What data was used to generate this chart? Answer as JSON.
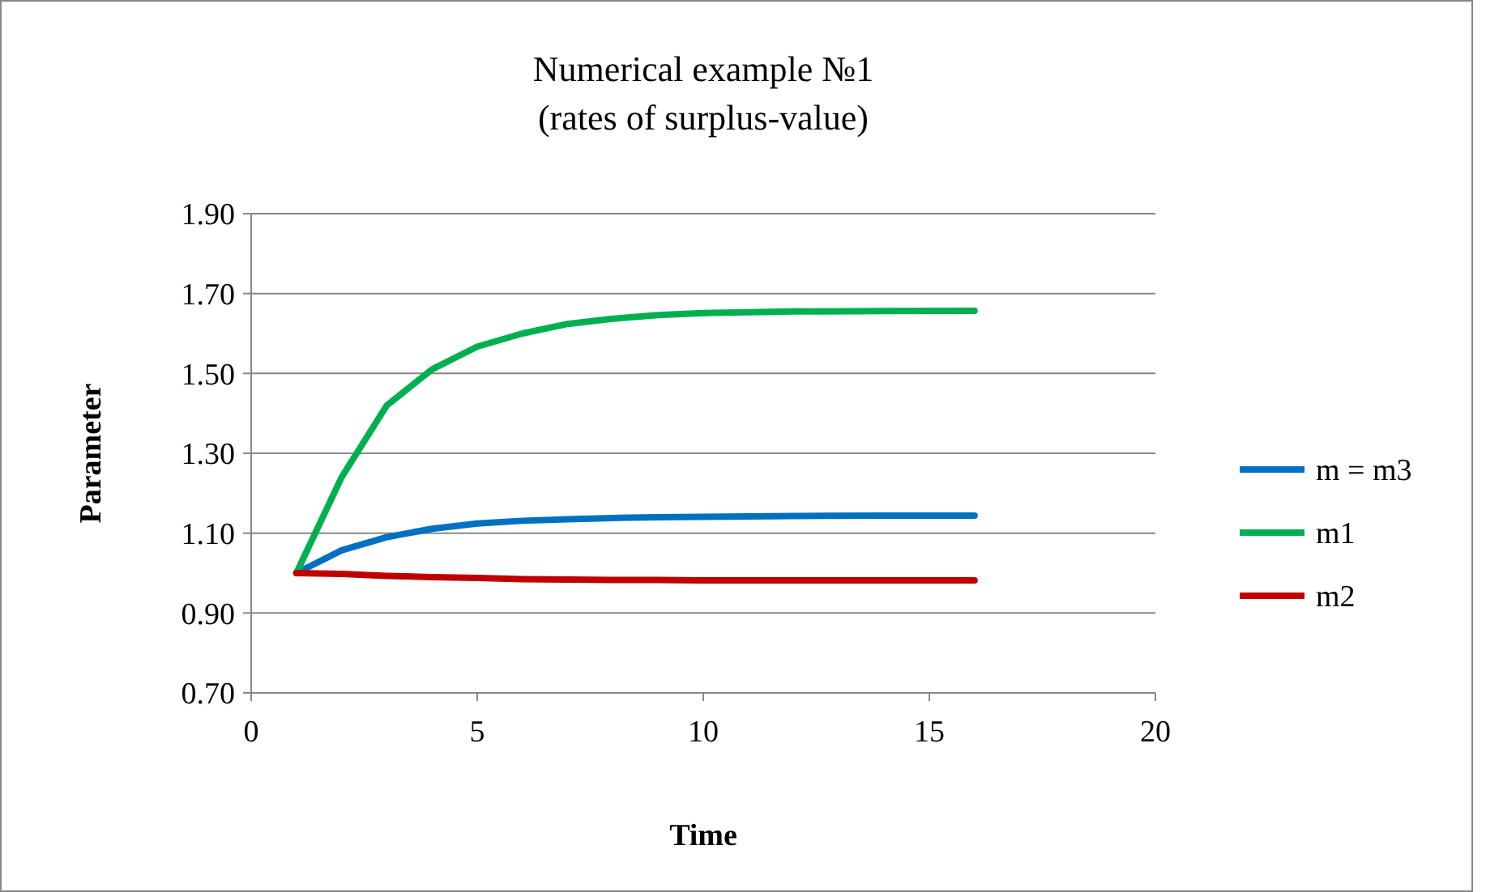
{
  "chart_data": {
    "type": "line",
    "title": "Numerical example №1",
    "subtitle": "(rates of surplus-value)",
    "xlabel": "Time",
    "ylabel": "Parameter",
    "x": [
      1,
      2,
      3,
      4,
      5,
      6,
      7,
      8,
      9,
      10,
      12,
      14,
      16
    ],
    "series": [
      {
        "name": "m = m3",
        "color": "#0070c0",
        "values": [
          1.0,
          1.057,
          1.09,
          1.111,
          1.124,
          1.131,
          1.135,
          1.138,
          1.14,
          1.141,
          1.143,
          1.144,
          1.144
        ]
      },
      {
        "name": "m1",
        "color": "#00b050",
        "values": [
          1.0,
          1.24,
          1.42,
          1.51,
          1.567,
          1.6,
          1.624,
          1.637,
          1.646,
          1.651,
          1.655,
          1.656,
          1.657
        ]
      },
      {
        "name": "m2",
        "color": "#c00000",
        "values": [
          1.0,
          0.998,
          0.993,
          0.99,
          0.988,
          0.985,
          0.984,
          0.983,
          0.983,
          0.982,
          0.982,
          0.982,
          0.982
        ]
      }
    ],
    "xlim": [
      0,
      20
    ],
    "xticks": [
      0,
      5,
      10,
      15,
      20
    ],
    "ylim": [
      0.7,
      1.9
    ],
    "yticks": [
      {
        "value": 0.7,
        "label": "0.70"
      },
      {
        "value": 0.9,
        "label": "0.90"
      },
      {
        "value": 1.1,
        "label": "1.10"
      },
      {
        "value": 1.3,
        "label": "1.30"
      },
      {
        "value": 1.5,
        "label": "1.50"
      },
      {
        "value": 1.7,
        "label": "1.70"
      },
      {
        "value": 1.9,
        "label": "1.90"
      }
    ],
    "grid": "y",
    "legend": "right",
    "marker": "none",
    "line_style": "solid"
  }
}
